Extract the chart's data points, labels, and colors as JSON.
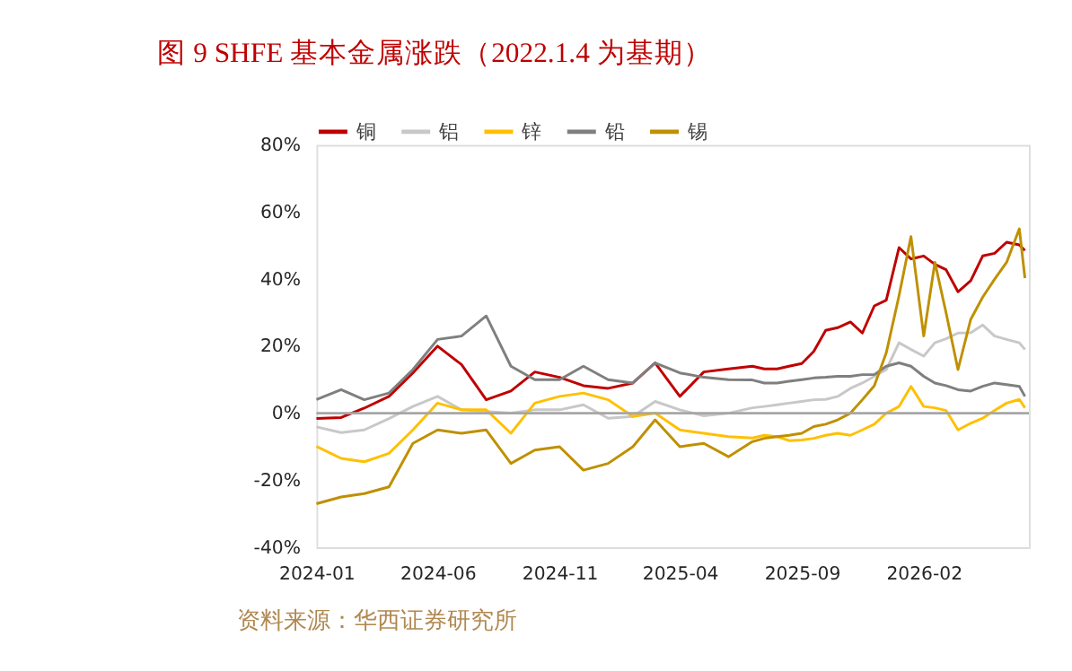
{
  "chart_data": {
    "type": "line",
    "title": "图 9  SHFE 基本金属涨跌（2022.1.4 为基期）",
    "annotations": [
      "资料来源：华西证券研究所"
    ],
    "x": [
      "2024-01-01",
      "2024-02-01",
      "2024-03-01",
      "2024-04-01",
      "2024-05-01",
      "2024-06-01",
      "2024-07-01",
      "2024-08-01",
      "2024-09-01",
      "2024-10-01",
      "2024-11-01",
      "2024-12-01",
      "2025-01-01",
      "2025-02-01",
      "2025-03-01",
      "2025-04-01",
      "2025-05-01",
      "2025-06-01",
      "2025-07-01",
      "2025-07-16",
      "2025-08-01",
      "2025-08-16",
      "2025-09-01",
      "2025-09-16",
      "2025-10-01",
      "2025-10-16",
      "2025-11-01",
      "2025-11-16",
      "2025-12-01",
      "2025-12-16",
      "2026-01-01",
      "2026-01-16",
      "2026-02-01",
      "2026-02-15",
      "2026-03-01",
      "2026-03-16",
      "2026-04-01",
      "2026-04-16",
      "2026-05-01",
      "2026-05-16",
      "2026-06-01",
      "2026-06-08"
    ],
    "series": [
      {
        "name": "铜",
        "color": "#c00000",
        "values": [
          -1.6,
          -1.3,
          1.5,
          5,
          12,
          20,
          14.5,
          4,
          6.6,
          12.3,
          10.7,
          8.2,
          7.4,
          9,
          15,
          5,
          12.3,
          13.2,
          14,
          13.2,
          13.2,
          14,
          14.8,
          18.4,
          24.7,
          25.5,
          27.2,
          23.9,
          32,
          33.7,
          49.4,
          46,
          46.9,
          44.4,
          42.8,
          36.2,
          39.5,
          46.9,
          47.7,
          51,
          50.2,
          48.5
        ]
      },
      {
        "name": "铝",
        "color": "#c8c8c8",
        "values": [
          -4.1,
          -5.8,
          -5,
          -1.6,
          2,
          5,
          1,
          0.5,
          0,
          1,
          1,
          2.5,
          -1.5,
          -1,
          3.5,
          1,
          -0.8,
          0,
          1.6,
          2,
          2.5,
          3,
          3.5,
          4,
          4.1,
          5,
          7.4,
          9,
          11,
          13,
          21,
          19,
          17,
          21,
          22.2,
          23.9,
          24,
          26.3,
          23,
          22,
          21,
          19
        ]
      },
      {
        "name": "锌",
        "color": "#ffc000",
        "values": [
          -9.9,
          -13.5,
          -14.5,
          -12,
          -5,
          3,
          1,
          1,
          -6,
          3,
          5,
          6,
          4,
          -1,
          0,
          -5,
          -6,
          -7,
          -7.4,
          -6.6,
          -7,
          -8.2,
          -8,
          -7.5,
          -6.6,
          -6,
          -6.6,
          -5,
          -3.3,
          0,
          2,
          8,
          2,
          1.6,
          0.8,
          -5,
          -3,
          -1.5,
          0.8,
          3,
          4.1,
          1.6
        ]
      },
      {
        "name": "铅",
        "color": "#7f7f7f",
        "values": [
          4.1,
          7,
          4,
          6,
          13,
          22,
          23,
          29,
          14,
          10,
          10,
          14,
          10,
          9,
          15,
          12,
          10.7,
          10,
          9.9,
          9,
          9,
          9.5,
          10,
          10.5,
          10.7,
          11,
          11,
          11.5,
          11.5,
          14,
          15,
          14,
          11,
          9,
          8.2,
          7,
          6.6,
          8,
          9,
          8.5,
          8,
          5
        ]
      },
      {
        "name": "锡",
        "color": "#bf9000",
        "values": [
          -27,
          -25,
          -24,
          -22,
          -9,
          -5,
          -6,
          -5,
          -15,
          -11,
          -10,
          -17,
          -15,
          -10,
          -2,
          -10,
          -9,
          -13,
          -8.5,
          -7.5,
          -7,
          -6.6,
          -6,
          -4,
          -3.3,
          -2,
          0,
          4,
          8.2,
          18,
          35,
          52.7,
          23,
          45,
          30,
          13,
          28,
          34.6,
          40,
          45,
          55,
          40.3
        ]
      }
    ],
    "xlim": [
      "2024-01-01",
      "2026-06-13"
    ],
    "xticks": [
      "2024-01",
      "2024-06",
      "2024-11",
      "2025-04",
      "2025-09",
      "2026-02"
    ],
    "ylim": [
      -40,
      80
    ],
    "yticks": [
      {
        "value": -40,
        "label": "-40%"
      },
      {
        "value": -20,
        "label": "-20%"
      },
      {
        "value": 0,
        "label": "0%"
      },
      {
        "value": 20,
        "label": "20%"
      },
      {
        "value": 40,
        "label": "40%"
      },
      {
        "value": 60,
        "label": "60%"
      },
      {
        "value": 80,
        "label": "80%"
      }
    ],
    "ref_lines": [
      {
        "axis": "y",
        "value": 0,
        "color": "#a6a6a6"
      }
    ],
    "grid": false,
    "legend": "top",
    "line_style": "solid",
    "marker": "none"
  }
}
